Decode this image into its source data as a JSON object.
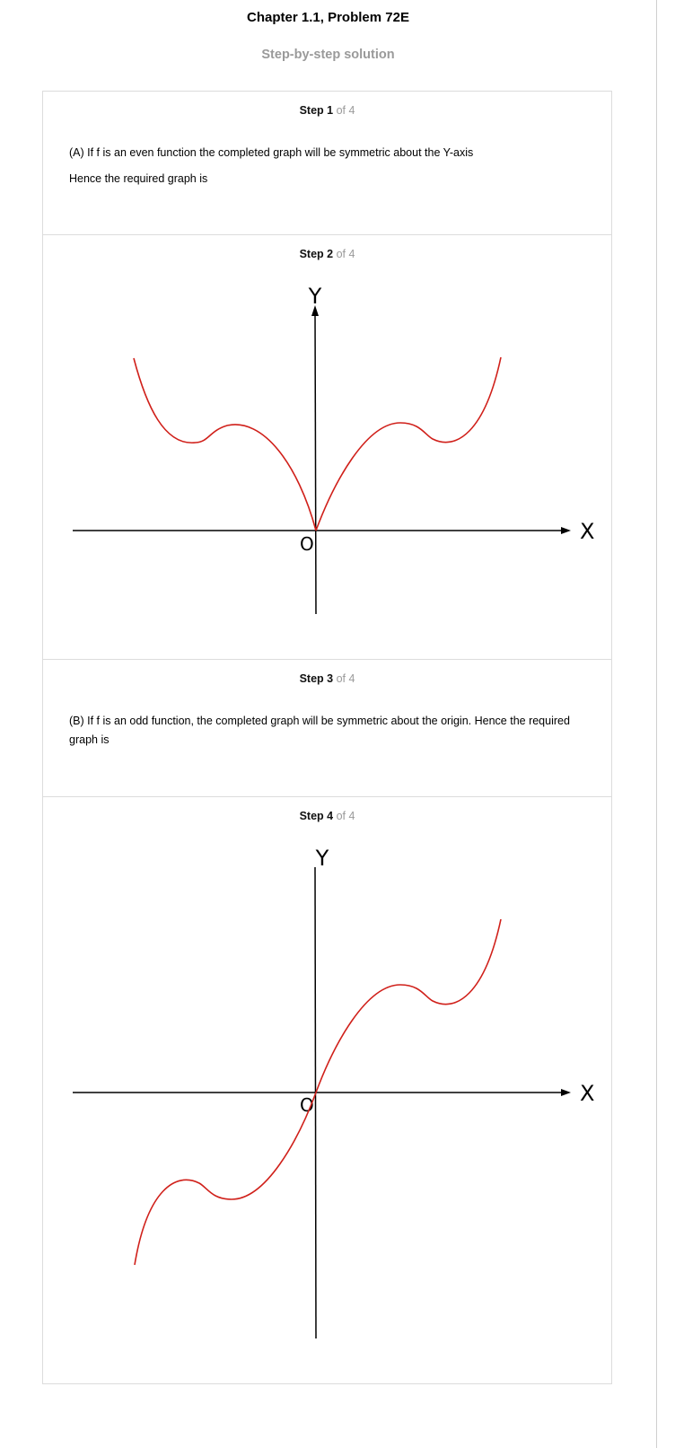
{
  "header": {
    "title": "Chapter 1.1, Problem 72E",
    "subtitle": "Step-by-step solution"
  },
  "steps": [
    {
      "label": "Step 1",
      "of": "of 4",
      "lines": [
        "(A) If f is an even function the completed graph will be symmetric about the Y-axis",
        "Hence the required graph is"
      ]
    },
    {
      "label": "Step 2",
      "of": "of 4",
      "figure": {
        "y_axis_label": "Y",
        "x_axis_label": "X",
        "origin_label": "O",
        "curve_color": "#d0201a",
        "symmetry": "even"
      }
    },
    {
      "label": "Step 3",
      "of": "of 4",
      "lines": [
        "(B) If f is an odd function, the completed graph will be symmetric about the origin. Hence the required graph is"
      ]
    },
    {
      "label": "Step 4",
      "of": "of 4",
      "figure": {
        "y_axis_label": "Y",
        "x_axis_label": "X",
        "origin_label": "O",
        "curve_color": "#d0201a",
        "symmetry": "odd"
      }
    }
  ]
}
